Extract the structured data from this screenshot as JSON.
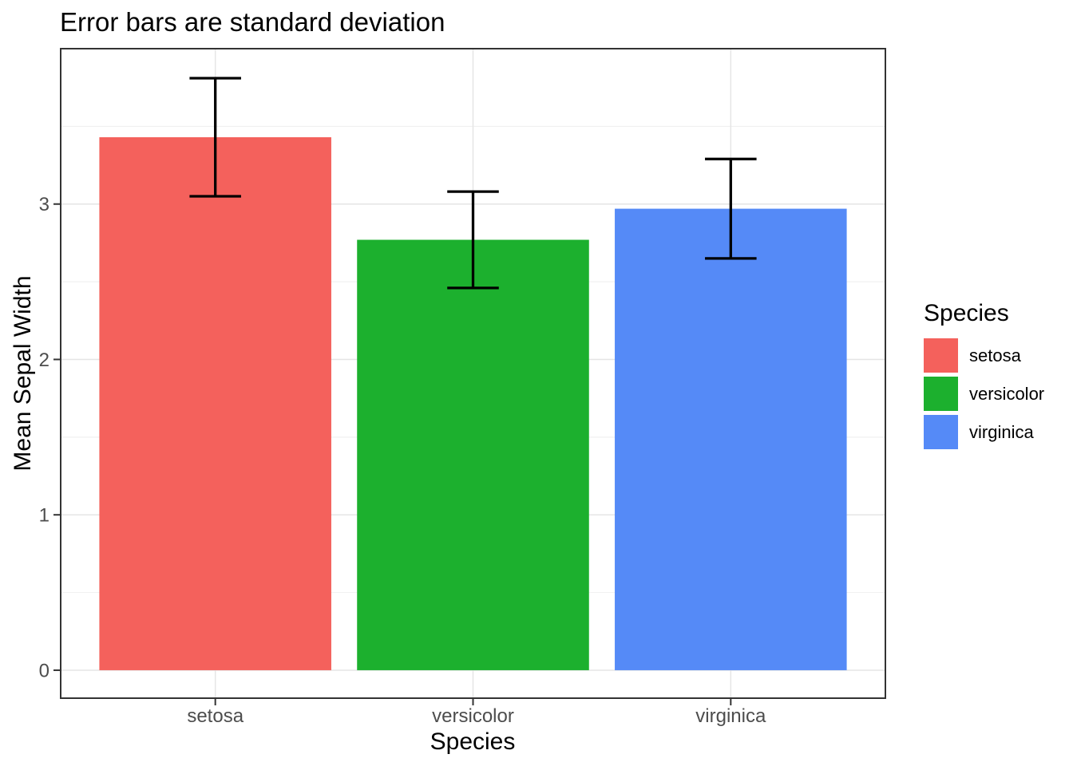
{
  "chart_data": {
    "type": "bar",
    "title": "Error bars are standard deviation",
    "xlabel": "Species",
    "ylabel": "Mean Sepal Width",
    "categories": [
      "setosa",
      "versicolor",
      "virginica"
    ],
    "series": [
      {
        "name": "setosa",
        "mean": 3.43,
        "sd": 0.38,
        "color": "#F4615C"
      },
      {
        "name": "versicolor",
        "mean": 2.77,
        "sd": 0.31,
        "color": "#1CB02E"
      },
      {
        "name": "virginica",
        "mean": 2.97,
        "sd": 0.32,
        "color": "#558AF7"
      }
    ],
    "error_bar_meaning": "standard deviation",
    "y_ticks": [
      0,
      1,
      2,
      3
    ],
    "y_minor_step": 0.5,
    "ylim": [
      -0.18,
      4.0
    ],
    "bar_width_fraction": 0.9,
    "errorbar_cap_fraction": 0.2,
    "legend": {
      "title": "Species",
      "position": "right"
    },
    "colors": {
      "grid_major": "#E5E5E5",
      "grid_minor": "#F1F1F1",
      "panel_border": "#333333",
      "tick_mark": "#333333",
      "tick_label": "#4D4D4D",
      "error_bar": "#000000",
      "background": "#FFFFFF"
    }
  }
}
